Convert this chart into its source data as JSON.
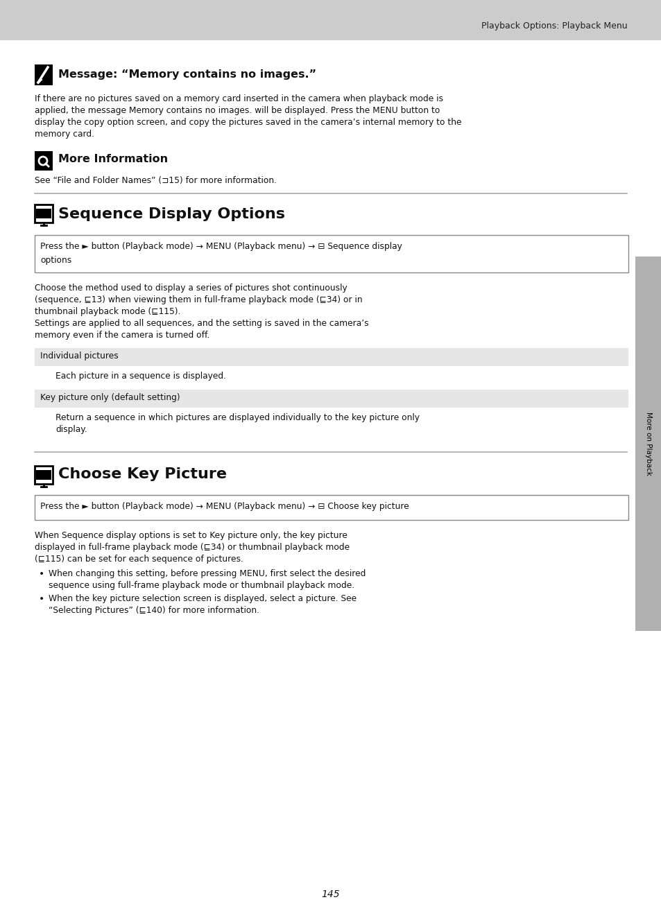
{
  "bg_color": "#ffffff",
  "header_bg": "#cccccc",
  "page_title": "Playback Options: Playback Menu",
  "page_number": "145",
  "sidebar_color": "#b0b0b0",
  "sidebar_text": "More on Playback",
  "section1_title": "Message: “Memory contains no images.”",
  "section1_body": [
    "If there are no pictures saved on a memory card inserted in the camera when playback mode is",
    "applied, the message Memory contains no images. will be displayed. Press the MENU button to",
    "display the copy option screen, and copy the pictures saved in the camera’s internal memory to the",
    "memory card."
  ],
  "section2_title": "More Information",
  "section2_body": "See “File and Folder Names” (⊐15) for more information.",
  "section3_title": "Sequence Display Options",
  "section3_box_line1": "Press the ► button (Playback mode) → MENU (Playback menu) → ⊟ Sequence display",
  "section3_box_line2": "options",
  "section3_body": [
    "Choose the method used to display a series of pictures shot continuously",
    "(sequence, ⊑13) when viewing them in full-frame playback mode (⊑34) or in",
    "thumbnail playback mode (⊑115).",
    "Settings are applied to all sequences, and the setting is saved in the camera’s",
    "memory even if the camera is turned off."
  ],
  "option1_label": "Individual pictures",
  "option1_body": "Each picture in a sequence is displayed.",
  "option2_label": "Key picture only (default setting)",
  "option2_body": [
    "Return a sequence in which pictures are displayed individually to the key picture only",
    "display."
  ],
  "section4_title": "Choose Key Picture",
  "section4_box": "Press the ► button (Playback mode) → MENU (Playback menu) → ⊟ Choose key picture",
  "section4_body": [
    "When Sequence display options is set to Key picture only, the key picture",
    "displayed in full-frame playback mode (⊑34) or thumbnail playback mode",
    "(⊑115) can be set for each sequence of pictures."
  ],
  "section4_bullet1": [
    "When changing this setting, before pressing MENU, first select the desired",
    "sequence using full-frame playback mode or thumbnail playback mode."
  ],
  "section4_bullet2": [
    "When the key picture selection screen is displayed, select a picture. See",
    "“Selecting Pictures” (⊑140) for more information."
  ],
  "option_bg": "#e6e6e6"
}
